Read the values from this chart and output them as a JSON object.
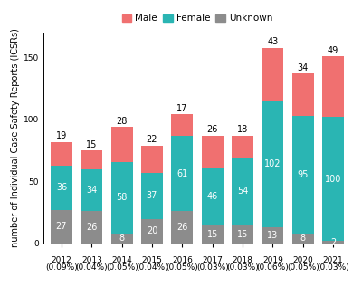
{
  "years": [
    "2012",
    "2013",
    "2014",
    "2015",
    "2016",
    "2017",
    "2018",
    "2019",
    "2020",
    "2021"
  ],
  "pcts": [
    "(0.09%)",
    "(0.04%)",
    "(0.05%)",
    "(0.04%)",
    "(0.05%)",
    "(0.03%)",
    "(0.03%)",
    "(0.06%)",
    "(0.05%)",
    "(0.03%)"
  ],
  "unknown": [
    27,
    26,
    8,
    20,
    26,
    15,
    15,
    13,
    8,
    2
  ],
  "female": [
    36,
    34,
    58,
    37,
    61,
    46,
    54,
    102,
    95,
    100
  ],
  "male": [
    19,
    15,
    28,
    22,
    17,
    26,
    18,
    43,
    34,
    49
  ],
  "unknown_color": "#8c8c8c",
  "female_color": "#2ab5b3",
  "male_color": "#f07070",
  "background_color": "#ffffff",
  "ylabel": "number of Individual Case Safety Reports (ICSRs)",
  "ylim": [
    0,
    170
  ],
  "yticks": [
    0,
    50,
    100,
    150
  ],
  "bar_width": 0.72,
  "label_fontsize": 7.0,
  "tick_fontsize": 6.5,
  "legend_fontsize": 7.5,
  "ylabel_fontsize": 7.0
}
